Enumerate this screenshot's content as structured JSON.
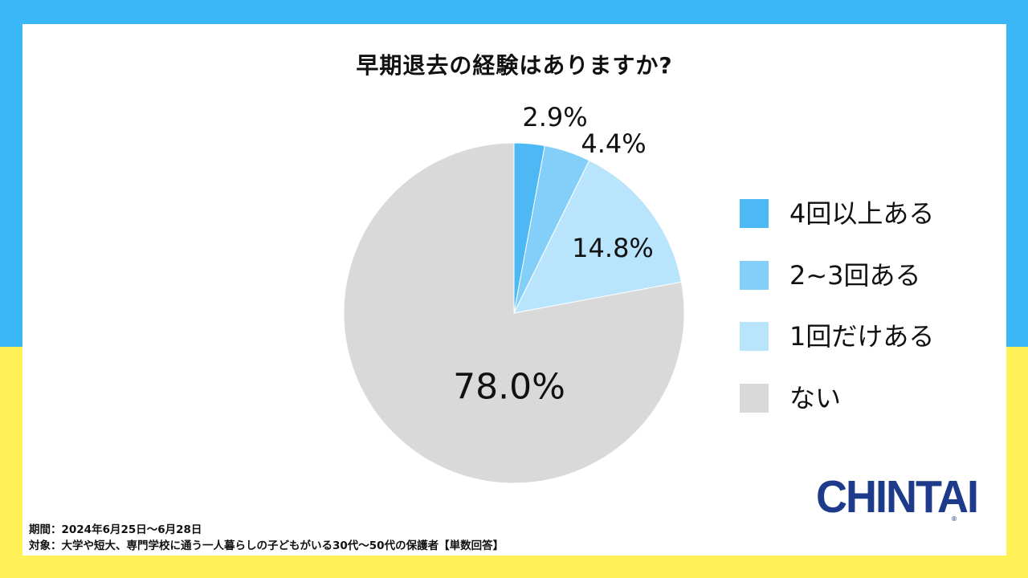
{
  "title": "早期退去の経験はありますか?",
  "chart_data": {
    "type": "pie",
    "title": "早期退去の経験はありますか?",
    "categories": [
      "4回以上ある",
      "2~3回ある",
      "1回だけある",
      "ない"
    ],
    "values": [
      2.9,
      4.4,
      14.8,
      78.0
    ],
    "labels": [
      "2.9%",
      "4.4%",
      "14.8%",
      "78.0%"
    ],
    "colors": [
      "#4cb8f4",
      "#83cff9",
      "#b8e4fc",
      "#d9d9d9"
    ],
    "legend_position": "right",
    "start_angle": "12 o'clock",
    "direction": "clockwise"
  },
  "legend": [
    {
      "label": "4回以上ある",
      "color": "#4cb8f4"
    },
    {
      "label": "2~3回ある",
      "color": "#83cff9"
    },
    {
      "label": "1回だけある",
      "color": "#b8e4fc"
    },
    {
      "label": "ない",
      "color": "#d9d9d9"
    }
  ],
  "footnote": {
    "period": "期間：2024年6月25日〜6月28日",
    "target": "対象：大学や短大、専門学校に通う一人暮らしの子どもがいる30代〜50代の保護者【単数回答】"
  },
  "logo": {
    "text": "CHINTAI",
    "mark": "®"
  },
  "colors": {
    "background_top": "#3bb6f6",
    "background_bottom": "#fff157",
    "logo": "#1e3a8a"
  }
}
